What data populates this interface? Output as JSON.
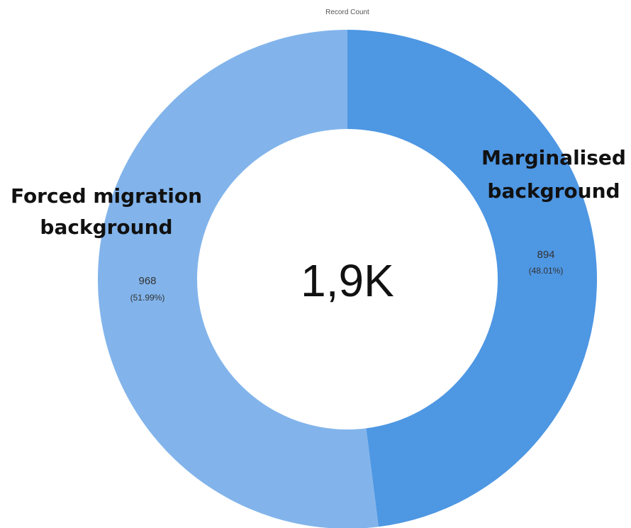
{
  "chart_data": {
    "type": "pie",
    "title": "Record Count",
    "center_label": "1,9K",
    "slices": [
      {
        "label_lines": [
          "Marginalised",
          "background"
        ],
        "value": 894,
        "value_label": "894",
        "percent_label": "(48.01%)",
        "color": "#4e97e3"
      },
      {
        "label_lines": [
          "Forced migration",
          "background"
        ],
        "value": 968,
        "value_label": "968",
        "percent_label": "(51.99%)",
        "color": "#82b4eb"
      }
    ]
  }
}
